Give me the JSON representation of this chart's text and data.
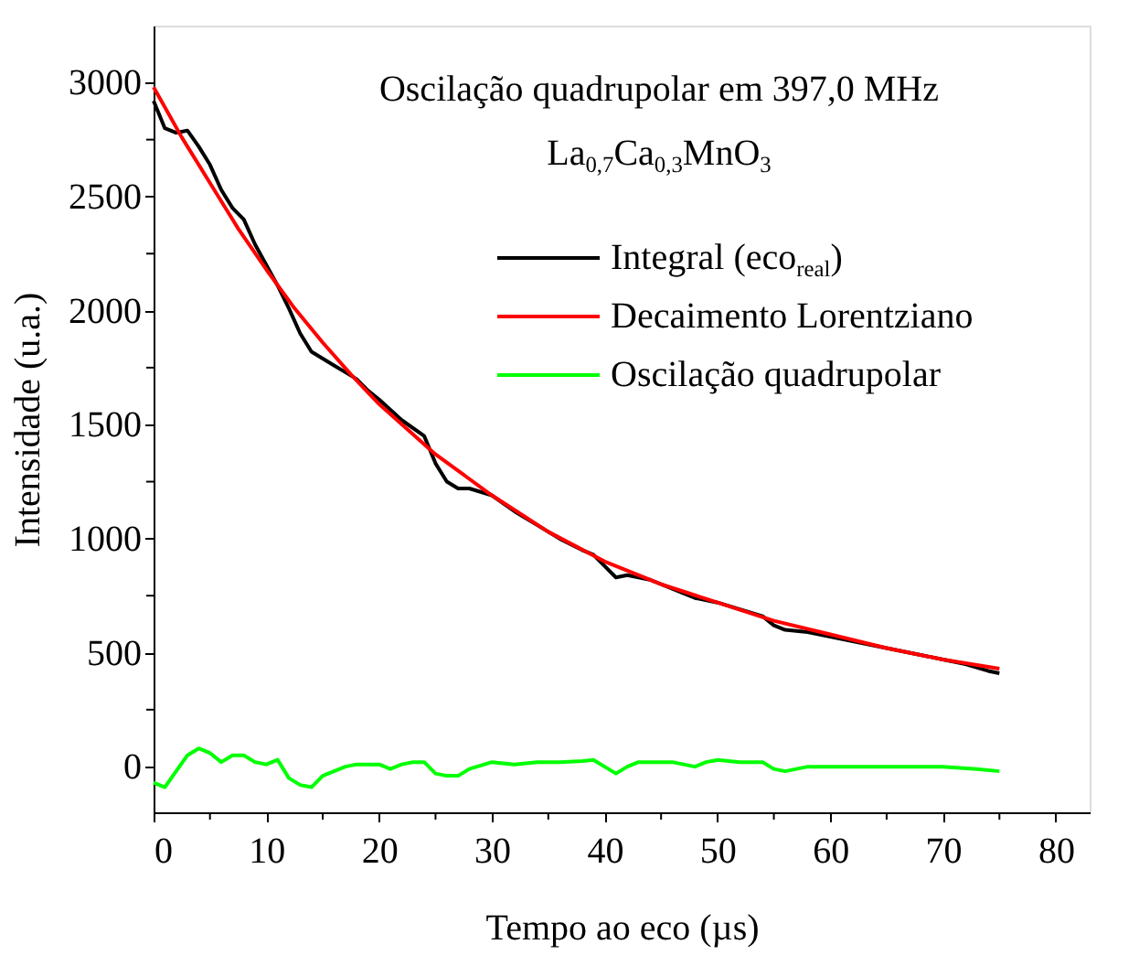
{
  "chart_data": {
    "type": "line",
    "xlabel": "Tempo ao eco (µs)",
    "ylabel": "Intensidade (u.a.)",
    "annotations": [
      "Oscilação quadrupolar em 397,0 MHz",
      "La$_{0,7}$Ca$_{0,3}$MnO$_{3}$"
    ],
    "xlim": [
      0,
      83
    ],
    "ylim": [
      -200,
      3250
    ],
    "xticks": [
      0,
      {
        "value": 5,
        "label": null
      },
      10,
      {
        "value": 15,
        "label": null
      },
      20,
      {
        "value": 25,
        "label": null
      },
      30,
      {
        "value": 35,
        "label": null
      },
      40,
      {
        "value": 45,
        "label": null
      },
      50,
      {
        "value": 55,
        "label": null
      },
      60,
      {
        "value": 65,
        "label": null
      },
      70,
      {
        "value": 75,
        "label": null
      },
      80
    ],
    "yticks": [
      0,
      {
        "value": 250,
        "label": null
      },
      500,
      {
        "value": 750,
        "label": null
      },
      1000,
      {
        "value": 1250,
        "label": null
      },
      1500,
      {
        "value": 1750,
        "label": null
      },
      2000,
      {
        "value": 2250,
        "label": null
      },
      2500,
      {
        "value": 2750,
        "label": null
      },
      3000
    ],
    "grid": false,
    "legend": "top right",
    "line_style": "solid",
    "marker": "none",
    "series": [
      {
        "name": "Integral (eco$_{real}$)",
        "color": "#000000",
        "x": [
          0,
          1,
          2,
          3,
          4,
          5,
          6,
          7,
          8,
          9,
          10,
          11,
          12,
          13,
          14,
          15,
          16,
          17,
          18,
          19,
          20,
          22,
          24,
          25,
          26,
          27,
          28,
          30,
          32,
          34,
          36,
          38,
          39,
          40,
          41,
          42,
          44,
          46,
          48,
          50,
          52,
          54,
          55,
          56,
          58,
          60,
          62,
          64,
          66,
          68,
          70,
          72,
          74,
          75
        ],
        "values": [
          2920,
          2800,
          2780,
          2790,
          2720,
          2640,
          2530,
          2450,
          2400,
          2290,
          2200,
          2110,
          2010,
          1900,
          1820,
          1790,
          1760,
          1730,
          1700,
          1650,
          1610,
          1520,
          1450,
          1330,
          1250,
          1220,
          1220,
          1190,
          1120,
          1060,
          1000,
          950,
          930,
          880,
          830,
          840,
          820,
          780,
          740,
          720,
          690,
          660,
          620,
          600,
          590,
          570,
          550,
          530,
          510,
          490,
          470,
          450,
          420,
          410
        ]
      },
      {
        "name": "Decaimento Lorentziano",
        "color": "#ff0000",
        "x": [
          0,
          2.5,
          5,
          7.5,
          10,
          12.5,
          15,
          17.5,
          20,
          25,
          30,
          35,
          40,
          45,
          50,
          55,
          60,
          65,
          70,
          75
        ],
        "values": [
          2980,
          2760,
          2560,
          2360,
          2180,
          2010,
          1860,
          1720,
          1590,
          1370,
          1190,
          1030,
          900,
          800,
          720,
          640,
          580,
          520,
          470,
          430
        ]
      },
      {
        "name": "Oscilação quadrupolar",
        "color": "#00ff00",
        "x": [
          0,
          1,
          2,
          3,
          4,
          5,
          6,
          7,
          8,
          9,
          10,
          11,
          12,
          13,
          14,
          15,
          16,
          17,
          18,
          20,
          21,
          22,
          23,
          24,
          25,
          26,
          27,
          28,
          30,
          32,
          34,
          36,
          38,
          39,
          40,
          41,
          42,
          43,
          46,
          48,
          49,
          50,
          52,
          54,
          55,
          56,
          58,
          60,
          65,
          70,
          73,
          75
        ],
        "values": [
          -70,
          -90,
          -20,
          50,
          80,
          60,
          20,
          50,
          50,
          20,
          10,
          30,
          -50,
          -80,
          -90,
          -40,
          -20,
          0,
          10,
          10,
          -10,
          10,
          20,
          20,
          -30,
          -40,
          -40,
          -10,
          20,
          10,
          20,
          20,
          25,
          30,
          0,
          -30,
          0,
          20,
          20,
          0,
          20,
          30,
          20,
          20,
          -10,
          -20,
          0,
          0,
          0,
          0,
          -10,
          -20
        ]
      }
    ]
  }
}
